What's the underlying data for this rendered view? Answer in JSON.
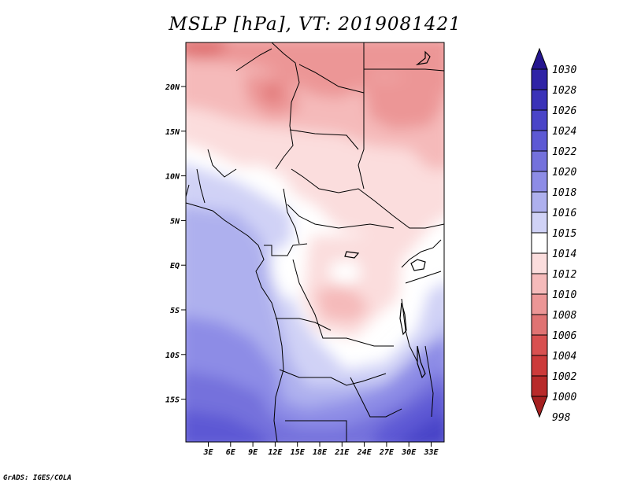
{
  "title": "MSLP [hPa], VT: 2019081421",
  "credit": "GrADS: IGES/COLA",
  "map": {
    "lat_labels": [
      "20N",
      "15N",
      "10N",
      "5N",
      "EQ",
      "5S",
      "10S",
      "15S"
    ],
    "lon_labels": [
      "3E",
      "6E",
      "9E",
      "12E",
      "15E",
      "18E",
      "21E",
      "24E",
      "27E",
      "30E",
      "33E"
    ]
  },
  "colorbar": {
    "levels": [
      "1030",
      "1028",
      "1026",
      "1024",
      "1022",
      "1020",
      "1018",
      "1016",
      "1015",
      "1014",
      "1012",
      "1010",
      "1008",
      "1006",
      "1004",
      "1002",
      "1000",
      "998"
    ],
    "colors": [
      "#25168f",
      "#2f23a6",
      "#3a32b8",
      "#4a44c8",
      "#5d59d4",
      "#7471dc",
      "#8d8ce6",
      "#aeb0ee",
      "#d0d2f6",
      "#ffffff",
      "#fbdddd",
      "#f5baba",
      "#ec9696",
      "#e07373",
      "#d85050",
      "#cc3a3a",
      "#b82a2a",
      "#a52020"
    ]
  }
}
